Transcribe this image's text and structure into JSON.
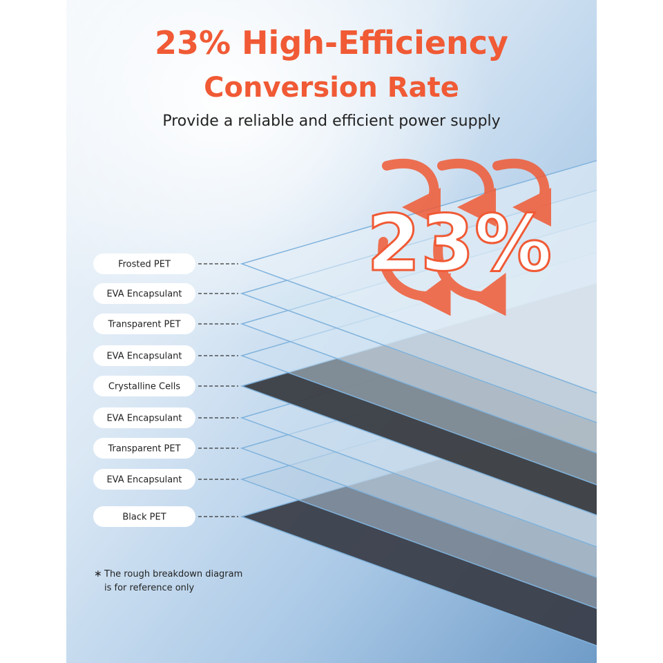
{
  "header": {
    "title_line1": "23% High-Efficiency",
    "title_line2": "Conversion Rate",
    "subtitle": "Provide a reliable and efficient power supply"
  },
  "badge": "23%",
  "layers": [
    {
      "label": "Frosted PET"
    },
    {
      "label": "EVA Encapsulant"
    },
    {
      "label": "Transparent PET"
    },
    {
      "label": "EVA Encapsulant"
    },
    {
      "label": "Crystalline Cells"
    },
    {
      "label": "EVA Encapsulant"
    },
    {
      "label": "Transparent PET"
    },
    {
      "label": "EVA Encapsulant"
    },
    {
      "label": "Black PET"
    }
  ],
  "footnote": {
    "mark": "∗",
    "line1": "The rough breakdown diagram",
    "line2": "is for reference only"
  }
}
